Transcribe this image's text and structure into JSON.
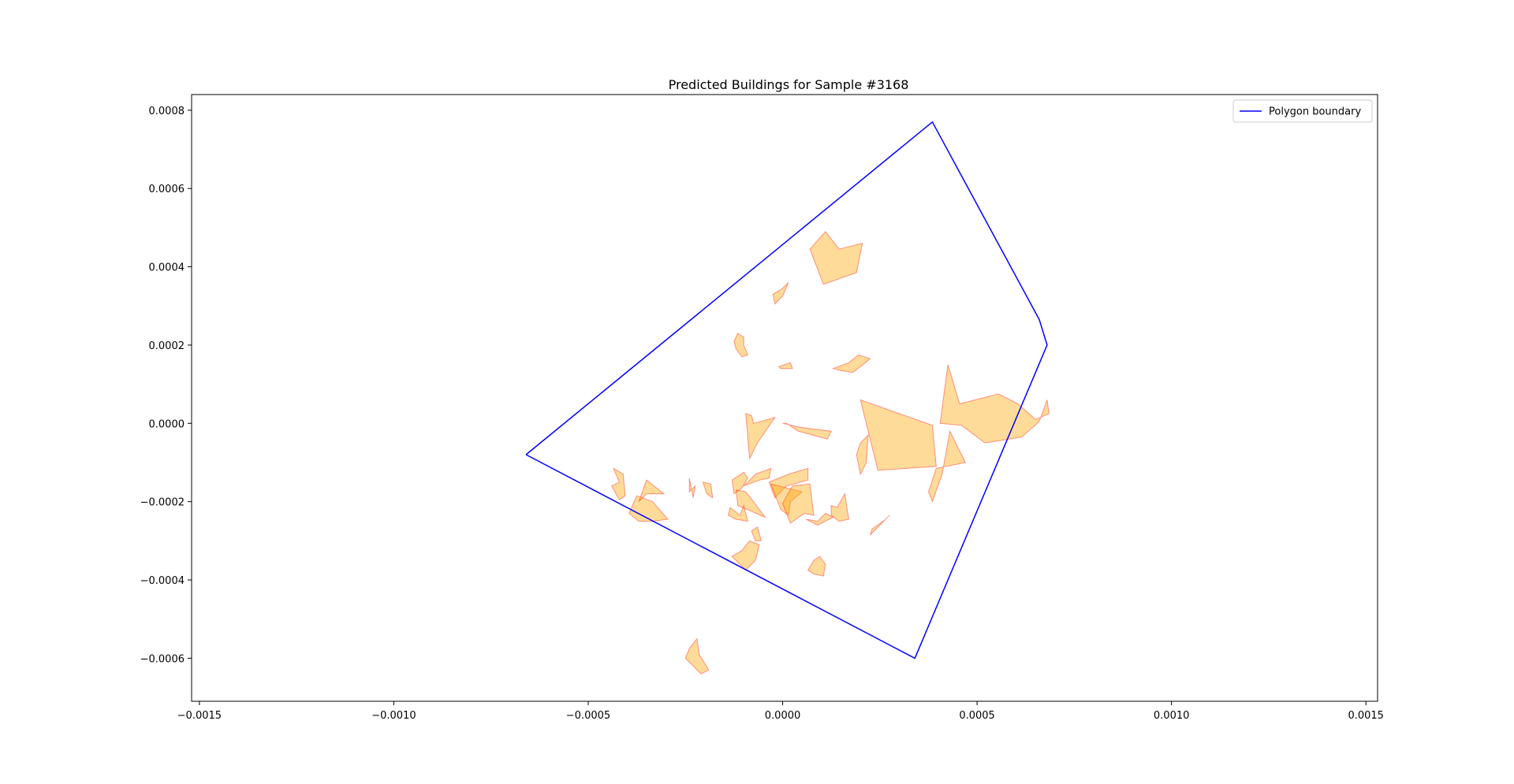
{
  "chart_data": {
    "type": "polygon-plot",
    "title": "Predicted Buildings for Sample #3168",
    "xlabel": "",
    "ylabel": "",
    "xlim": [
      -0.00152,
      0.00153
    ],
    "ylim": [
      -0.00071,
      0.00084
    ],
    "grid": false,
    "legend": {
      "position": "top-right",
      "entries": [
        {
          "label": "Polygon boundary",
          "color": "#0000ff"
        }
      ]
    },
    "x_ticks": [
      {
        "value": -0.0015,
        "label": "−0.0015"
      },
      {
        "value": -0.001,
        "label": "−0.0010"
      },
      {
        "value": -0.0005,
        "label": "−0.0005"
      },
      {
        "value": 0.0,
        "label": "0.0000"
      },
      {
        "value": 0.0005,
        "label": "0.0005"
      },
      {
        "value": 0.001,
        "label": "0.0010"
      },
      {
        "value": 0.0015,
        "label": "0.0015"
      }
    ],
    "y_ticks": [
      {
        "value": -0.0006,
        "label": "−0.0006"
      },
      {
        "value": -0.0004,
        "label": "−0.0004"
      },
      {
        "value": -0.0002,
        "label": "−0.0002"
      },
      {
        "value": 0.0,
        "label": "0.0000"
      },
      {
        "value": 0.0002,
        "label": "0.0002"
      },
      {
        "value": 0.0004,
        "label": "0.0004"
      },
      {
        "value": 0.0006,
        "label": "0.0006"
      },
      {
        "value": 0.0008,
        "label": "0.0008"
      }
    ],
    "boundary": {
      "name": "Polygon boundary",
      "color": "#0000ff",
      "points": [
        [
          -0.00066,
          -8e-05
        ],
        [
          0.000385,
          0.00077
        ],
        [
          0.00066,
          0.000265
        ],
        [
          0.00068,
          0.0002
        ],
        [
          0.00034,
          -0.0006
        ],
        [
          -0.00066,
          -8e-05
        ]
      ]
    },
    "buildings_style": {
      "fill": "#ffa500",
      "fill_opacity": 0.4,
      "edge": "#ff0000",
      "edge_opacity": 0.4
    },
    "buildings": [
      [
        [
          7e-05,
          0.000445
        ],
        [
          0.00011,
          0.00049
        ],
        [
          0.000145,
          0.000445
        ],
        [
          0.000205,
          0.00046
        ],
        [
          0.00019,
          0.000385
        ],
        [
          0.000105,
          0.000355
        ]
      ],
      [
        [
          -2.5e-05,
          0.00033
        ],
        [
          0.0,
          0.000345
        ],
        [
          1.5e-05,
          0.00036
        ],
        [
          0.0,
          0.000325
        ],
        [
          -2e-05,
          0.000305
        ]
      ],
      [
        [
          -0.000125,
          0.00021
        ],
        [
          -0.000115,
          0.00023
        ],
        [
          -0.0001,
          0.00022
        ],
        [
          -0.0001,
          0.0002
        ],
        [
          -9e-05,
          0.000175
        ],
        [
          -0.000105,
          0.00017
        ],
        [
          -0.00012,
          0.00019
        ]
      ],
      [
        [
          -1e-05,
          0.000145
        ],
        [
          2e-05,
          0.000155
        ],
        [
          2.5e-05,
          0.00014
        ],
        [
          -5e-06,
          0.00014
        ]
      ],
      [
        [
          0.00013,
          0.00014
        ],
        [
          0.00017,
          0.000155
        ],
        [
          0.000195,
          0.000175
        ],
        [
          0.000225,
          0.000165
        ],
        [
          0.0002,
          0.000145
        ],
        [
          0.00018,
          0.00013
        ],
        [
          0.00015,
          0.000135
        ]
      ],
      [
        [
          0.0002,
          6e-05
        ],
        [
          0.000385,
          -5e-06
        ],
        [
          0.000395,
          -0.00011
        ],
        [
          0.000245,
          -0.00012
        ],
        [
          0.000225,
          -4e-05
        ]
      ],
      [
        [
          0.000405,
          0.0
        ],
        [
          0.000425,
          0.00015
        ],
        [
          0.000455,
          5e-05
        ],
        [
          0.000555,
          7.5e-05
        ],
        [
          0.000605,
          5e-05
        ],
        [
          0.00065,
          1e-05
        ],
        [
          0.000685,
          2.5e-05
        ],
        [
          0.00068,
          6e-05
        ],
        [
          0.00066,
          5e-06
        ],
        [
          0.000615,
          -3.5e-05
        ],
        [
          0.00052,
          -5e-05
        ],
        [
          0.00046,
          -5e-06
        ]
      ],
      [
        [
          0.00043,
          -2e-05
        ],
        [
          0.00047,
          -0.0001
        ],
        [
          0.000395,
          -0.000115
        ],
        [
          0.000375,
          -0.000175
        ],
        [
          0.000385,
          -0.0002
        ],
        [
          0.00041,
          -0.00013
        ]
      ],
      [
        [
          0.0002,
          -5e-05
        ],
        [
          0.00022,
          -3e-05
        ],
        [
          0.000215,
          -0.0001
        ],
        [
          0.0002,
          -0.00013
        ],
        [
          0.00019,
          -8e-05
        ]
      ],
      [
        [
          -9.5e-05,
          2.5e-05
        ],
        [
          -8e-05,
          2e-05
        ],
        [
          -7.5e-05,
          0.0
        ],
        [
          -2e-05,
          1.5e-05
        ],
        [
          -6.5e-05,
          -5e-05
        ],
        [
          -8.5e-05,
          -9e-05
        ]
      ],
      [
        [
          0.0,
          0.0
        ],
        [
          4.5e-05,
          -1e-05
        ],
        [
          0.000125,
          -2e-05
        ],
        [
          0.000115,
          -4e-05
        ],
        [
          4e-05,
          -2e-05
        ],
        [
          1e-05,
          0.0
        ]
      ],
      [
        [
          -0.000395,
          -0.00023
        ],
        [
          -0.00037,
          -0.00025
        ],
        [
          -0.000335,
          -0.00025
        ],
        [
          -0.000295,
          -0.000245
        ],
        [
          -0.000335,
          -0.0002
        ],
        [
          -0.000375,
          -0.000185
        ]
      ],
      [
        [
          -0.00037,
          -0.0002
        ],
        [
          -0.00035,
          -0.000145
        ],
        [
          -0.000305,
          -0.00018
        ],
        [
          -0.00035,
          -0.00018
        ]
      ],
      [
        [
          -0.00042,
          -0.00015
        ],
        [
          -0.000435,
          -0.000115
        ],
        [
          -0.00041,
          -0.00013
        ],
        [
          -0.000405,
          -0.000185
        ],
        [
          -0.00042,
          -0.000195
        ],
        [
          -0.00044,
          -0.00016
        ]
      ],
      [
        [
          -0.00024,
          -0.00014
        ],
        [
          -0.00023,
          -0.00019
        ],
        [
          -0.000225,
          -0.00016
        ],
        [
          -0.00024,
          -0.000175
        ]
      ],
      [
        [
          -0.000205,
          -0.00015
        ],
        [
          -0.000185,
          -0.000155
        ],
        [
          -0.00018,
          -0.00019
        ],
        [
          -0.000195,
          -0.00018
        ],
        [
          -0.0002,
          -0.000165
        ]
      ],
      [
        [
          -0.00013,
          -0.000145
        ],
        [
          -0.0001,
          -0.000125
        ],
        [
          -9e-05,
          -0.00014
        ],
        [
          -0.000105,
          -0.000165
        ],
        [
          -0.000125,
          -0.00018
        ]
      ],
      [
        [
          -0.00012,
          -0.00017
        ],
        [
          -9.5e-05,
          -0.000175
        ],
        [
          -7.5e-05,
          -0.0002
        ],
        [
          -4.5e-05,
          -0.00024
        ],
        [
          -8e-05,
          -0.000225
        ],
        [
          -0.000115,
          -0.00021
        ]
      ],
      [
        [
          -0.000135,
          -0.000215
        ],
        [
          -0.00011,
          -0.000235
        ],
        [
          -0.0001,
          -0.00021
        ],
        [
          -9e-05,
          -0.00025
        ],
        [
          -0.00012,
          -0.000245
        ],
        [
          -0.00014,
          -0.000235
        ]
      ],
      [
        [
          -7e-05,
          -0.00013
        ],
        [
          -3e-05,
          -0.000115
        ],
        [
          -3.5e-05,
          -0.00014
        ],
        [
          -6e-05,
          -0.000145
        ],
        [
          -0.0001,
          -0.00016
        ]
      ],
      [
        [
          -3.5e-05,
          -0.00015
        ],
        [
          1.5e-05,
          -0.00013
        ],
        [
          6.5e-05,
          -0.000115
        ],
        [
          6.5e-05,
          -0.000145
        ],
        [
          1e-05,
          -0.00016
        ],
        [
          -2e-05,
          -0.00019
        ]
      ],
      [
        [
          -3e-05,
          -0.000155
        ],
        [
          -5e-06,
          -0.00022
        ],
        [
          1.5e-05,
          -0.000235
        ],
        [
          2e-05,
          -0.0002
        ],
        [
          5e-05,
          -0.000175
        ]
      ],
      [
        [
          2.5e-05,
          -0.00016
        ],
        [
          7e-05,
          -0.000155
        ],
        [
          8e-05,
          -0.000235
        ],
        [
          5.5e-05,
          -0.00023
        ],
        [
          2e-05,
          -0.000255
        ],
        [
          0.0,
          -0.000205
        ]
      ],
      [
        [
          6e-05,
          -0.000245
        ],
        [
          9e-05,
          -0.00025
        ],
        [
          0.00011,
          -0.00023
        ],
        [
          0.00013,
          -0.00024
        ],
        [
          9e-05,
          -0.00026
        ]
      ],
      [
        [
          0.000125,
          -0.00021
        ],
        [
          0.00014,
          -0.000215
        ],
        [
          0.00016,
          -0.00018
        ],
        [
          0.000165,
          -0.000215
        ],
        [
          0.00017,
          -0.000245
        ],
        [
          0.000145,
          -0.00025
        ],
        [
          0.000125,
          -0.000235
        ]
      ],
      [
        [
          0.00023,
          -0.00027
        ],
        [
          0.000265,
          -0.000245
        ],
        [
          0.000275,
          -0.000235
        ],
        [
          0.00024,
          -0.00027
        ],
        [
          0.000225,
          -0.000285
        ]
      ],
      [
        [
          -8e-05,
          -0.000275
        ],
        [
          -6.5e-05,
          -0.000265
        ],
        [
          -5.5e-05,
          -0.0003
        ],
        [
          -7e-05,
          -0.0003
        ]
      ],
      [
        [
          -0.00013,
          -0.00034
        ],
        [
          -0.000105,
          -0.000325
        ],
        [
          -8.5e-05,
          -0.0003
        ],
        [
          -6e-05,
          -0.00031
        ],
        [
          -7e-05,
          -0.00035
        ],
        [
          -9.5e-05,
          -0.000375
        ]
      ],
      [
        [
          8e-05,
          -0.00035
        ],
        [
          9.5e-05,
          -0.00034
        ],
        [
          0.00011,
          -0.00036
        ],
        [
          0.000105,
          -0.00039
        ],
        [
          8e-05,
          -0.000385
        ],
        [
          6.5e-05,
          -0.000375
        ]
      ],
      [
        [
          -0.00024,
          -0.000575
        ],
        [
          -0.00022,
          -0.00055
        ],
        [
          -0.000215,
          -0.00059
        ],
        [
          -0.00019,
          -0.00063
        ],
        [
          -0.00021,
          -0.00064
        ],
        [
          -0.00025,
          -0.0006
        ]
      ]
    ]
  }
}
